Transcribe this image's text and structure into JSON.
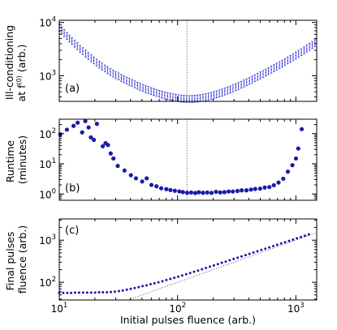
{
  "chart_data": {
    "type": "scatter",
    "shared_x": {
      "label": "Initial pulses fluence (arb.)",
      "scale": "log",
      "lim": [
        10,
        1500
      ],
      "ticks": [
        10,
        100,
        1000
      ],
      "tick_labels": [
        {
          "base": "10",
          "exp": "1"
        },
        {
          "base": "10",
          "exp": "2"
        },
        {
          "base": "10",
          "exp": "3"
        }
      ]
    },
    "marker_color": "#1a1aaa",
    "panels": [
      {
        "tag": "(a)",
        "ylabel_lines": [
          "Ill-conditioning",
          "at f",
          "(0)",
          "(arb.)"
        ],
        "yscale": "log",
        "ylim": [
          330,
          11000
        ],
        "yticks": [
          1000,
          10000
        ],
        "ytick_labels": [
          {
            "base": "10",
            "exp": "3"
          },
          {
            "base": "10",
            "exp": "4"
          }
        ],
        "vline_x": 120,
        "style": "errorbar",
        "series_x": [
          10,
          10.5,
          11,
          11.6,
          12.2,
          12.8,
          13.5,
          14.2,
          15,
          15.8,
          16.7,
          17.6,
          18.6,
          19.6,
          20.7,
          21.8,
          23,
          24.3,
          25.6,
          27,
          28.5,
          30,
          31.7,
          33.4,
          35.2,
          37.1,
          39.1,
          41.2,
          43.5,
          45.8,
          48.3,
          51,
          53.8,
          56.7,
          59.8,
          63,
          66.5,
          70.1,
          73.9,
          78,
          82.2,
          86.7,
          91.4,
          96.4,
          101.7,
          107.2,
          113,
          119.2,
          125.7,
          132.6,
          139.8,
          147.4,
          155.5,
          164,
          172.9,
          182.4,
          192.3,
          202.8,
          213.9,
          225.6,
          237.9,
          250.9,
          264.6,
          279,
          294.3,
          310.3,
          327.3,
          345.2,
          364,
          383.9,
          404.8,
          426.9,
          450.2,
          474.8,
          500.8,
          528.1,
          557,
          587.4,
          619.4,
          653.3,
          688.9,
          726.5,
          766.2,
          808.1,
          852.2,
          898.7,
          947.8,
          999.5,
          1054,
          1112,
          1172,
          1236,
          1304,
          1375,
          1450
        ],
        "series_y": [
          8000,
          7100,
          6300,
          5600,
          5000,
          4500,
          4000,
          3600,
          3200,
          2900,
          2600,
          2350,
          2130,
          1940,
          1770,
          1620,
          1490,
          1370,
          1270,
          1180,
          1100,
          1030,
          970,
          910,
          860,
          810,
          770,
          730,
          690,
          650,
          620,
          590,
          560,
          540,
          515,
          495,
          475,
          458,
          442,
          428,
          415,
          404,
          394,
          386,
          379,
          373,
          369,
          366,
          365,
          366,
          369,
          373,
          379,
          386,
          395,
          406,
          418,
          432,
          447,
          465,
          484,
          505,
          528,
          553,
          580,
          610,
          642,
          677,
          715,
          756,
          800,
          848,
          900,
          955,
          1015,
          1080,
          1150,
          1225,
          1305,
          1390,
          1480,
          1580,
          1690,
          1810,
          1940,
          2080,
          2230,
          2400,
          2580,
          2780,
          3000,
          3240,
          3500,
          3790,
          4100
        ],
        "err_lo": 0.86,
        "err_hi": 1.16
      },
      {
        "tag": "(b)",
        "ylabel_lines": [
          "Runtime",
          "(minutes)"
        ],
        "yscale": "log",
        "ylim": [
          0.62,
          300
        ],
        "yticks": [
          1,
          10,
          100
        ],
        "ytick_labels": [
          {
            "base": "10",
            "exp": "0"
          },
          {
            "base": "10",
            "exp": "1"
          },
          {
            "base": "10",
            "exp": "2"
          }
        ],
        "vline_x": 120,
        "style": "dots",
        "series_x": [
          10.2,
          11.6,
          13.2,
          14.3,
          15.6,
          16.6,
          17.7,
          18.5,
          19.6,
          20.8,
          23.3,
          24.6,
          25.8,
          27.2,
          28.7,
          31.2,
          35.6,
          40.3,
          44.5,
          50.2,
          54.8,
          60.1,
          66.3,
          72.8,
          80.3,
          87.1,
          94.8,
          103.4,
          110.8,
          120.3,
          130.4,
          141.2,
          151.4,
          164.2,
          178.3,
          193.6,
          211.2,
          229.5,
          248.8,
          270.3,
          293.1,
          320.7,
          348.5,
          382.2,
          417.5,
          453.3,
          498.6,
          545.8,
          597.2,
          651.3,
          713.4,
          782.2,
          855.4,
          934.2,
          1002,
          1048,
          1121
        ],
        "series_y": [
          95,
          135,
          180,
          230,
          110,
          260,
          160,
          75,
          62,
          210,
          38,
          48,
          42,
          22,
          15,
          8.5,
          6,
          4.2,
          3.3,
          2.6,
          3.3,
          2,
          1.8,
          1.55,
          1.45,
          1.35,
          1.28,
          1.22,
          1.16,
          1.1,
          1.12,
          1.08,
          1.14,
          1.1,
          1.12,
          1.09,
          1.18,
          1.13,
          1.15,
          1.21,
          1.21,
          1.26,
          1.32,
          1.32,
          1.4,
          1.47,
          1.5,
          1.64,
          1.7,
          1.95,
          2.4,
          3.2,
          5.5,
          9,
          15,
          32,
          140
        ]
      },
      {
        "tag": "(c)",
        "ylabel_lines": [
          "Final pulses",
          "fluence (arb.)"
        ],
        "yscale": "log",
        "ylim": [
          38,
          3200
        ],
        "yticks": [
          100,
          1000
        ],
        "ytick_labels": [
          {
            "base": "10",
            "exp": "2"
          },
          {
            "base": "10",
            "exp": "3"
          }
        ],
        "diagonal": true,
        "style": "dots",
        "series_x": [
          10,
          10.8,
          11.7,
          12.6,
          13.6,
          14.7,
          15.9,
          17.2,
          18.6,
          20.1,
          21.7,
          23.4,
          25.3,
          27.3,
          29.5,
          31.9,
          34.4,
          37.2,
          40.2,
          43.4,
          46.9,
          50.6,
          54.7,
          59.1,
          63.8,
          68.9,
          74.4,
          80.4,
          86.8,
          93.8,
          101.3,
          109.4,
          118.2,
          127.7,
          137.9,
          148.9,
          160.9,
          173.7,
          187.7,
          202.7,
          218.9,
          236.4,
          255.4,
          275.8,
          297.9,
          321.8,
          347.5,
          375.3,
          405.4,
          437.9,
          472.9,
          510.8,
          551.6,
          595.8,
          643.5,
          695,
          750.6,
          810.7,
          875.5,
          945.6,
          1021,
          1103,
          1191,
          1287
        ],
        "series_y": [
          56,
          56,
          56,
          56,
          57,
          57,
          57,
          57,
          57,
          57,
          58,
          58,
          58,
          59,
          60,
          62,
          64,
          67,
          70,
          73,
          77,
          81,
          85,
          90,
          95,
          100,
          106,
          113,
          120,
          128,
          136,
          145,
          155,
          166,
          178,
          190,
          204,
          219,
          235,
          252,
          270,
          290,
          311,
          334,
          358,
          384,
          412,
          442,
          474,
          509,
          546,
          586,
          629,
          675,
          725,
          778,
          835,
          896,
          962,
          1033,
          1109,
          1190,
          1277,
          1371
        ]
      }
    ]
  }
}
